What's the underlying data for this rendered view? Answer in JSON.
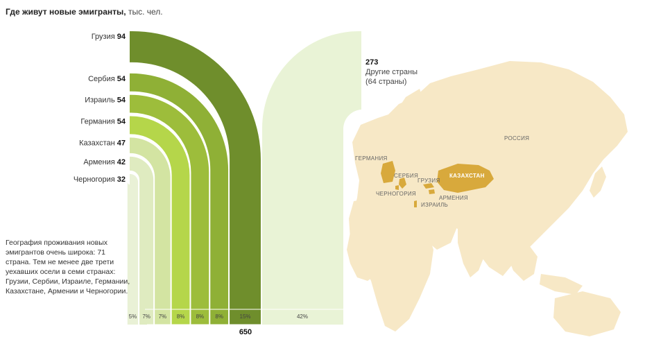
{
  "header": {
    "title": "Где живут новые эмигранты,",
    "unit": "тыс. чел."
  },
  "note": "География проживания новых эмигрантов очень широка: 71 страна. Тем не менее две трети уехавших осели в семи странах: Грузии, Сербии, Израиле, Германии, Казахстане, Армении и Черногории.",
  "chart_data": {
    "type": "bar",
    "categories": [
      "Грузия",
      "Сербия",
      "Израиль",
      "Германия",
      "Казахстан",
      "Армения",
      "Черногория"
    ],
    "values": [
      94,
      54,
      54,
      54,
      47,
      42,
      32
    ],
    "percent_labels": [
      "15%",
      "8%",
      "8%",
      "8%",
      "7%",
      "7%",
      "5%"
    ],
    "colors": [
      "#6f8e2c",
      "#8fb036",
      "#9dbd3b",
      "#b5d64a",
      "#d3e4a2",
      "#dfebc0",
      "#e9f1d6"
    ],
    "other": {
      "value": "273",
      "label": "Другие страны",
      "sublabel": "(64 страны)",
      "percent_label": "42%",
      "color": "#e9f3d6"
    },
    "total": "650"
  },
  "map": {
    "labels": {
      "russia": "РОССИЯ",
      "germany": "ГЕРМАНИЯ",
      "serbia": "СЕРБИЯ",
      "georgia": "ГРУЗИЯ",
      "kazakhstan": "КАЗАХСТАН",
      "montenegro": "ЧЕРНОГОРИЯ",
      "armenia": "АРМЕНИЯ",
      "israel": "ИЗРАИЛЬ"
    },
    "land_color": "#f7e8c6",
    "highlight_color": "#d8a93c"
  }
}
